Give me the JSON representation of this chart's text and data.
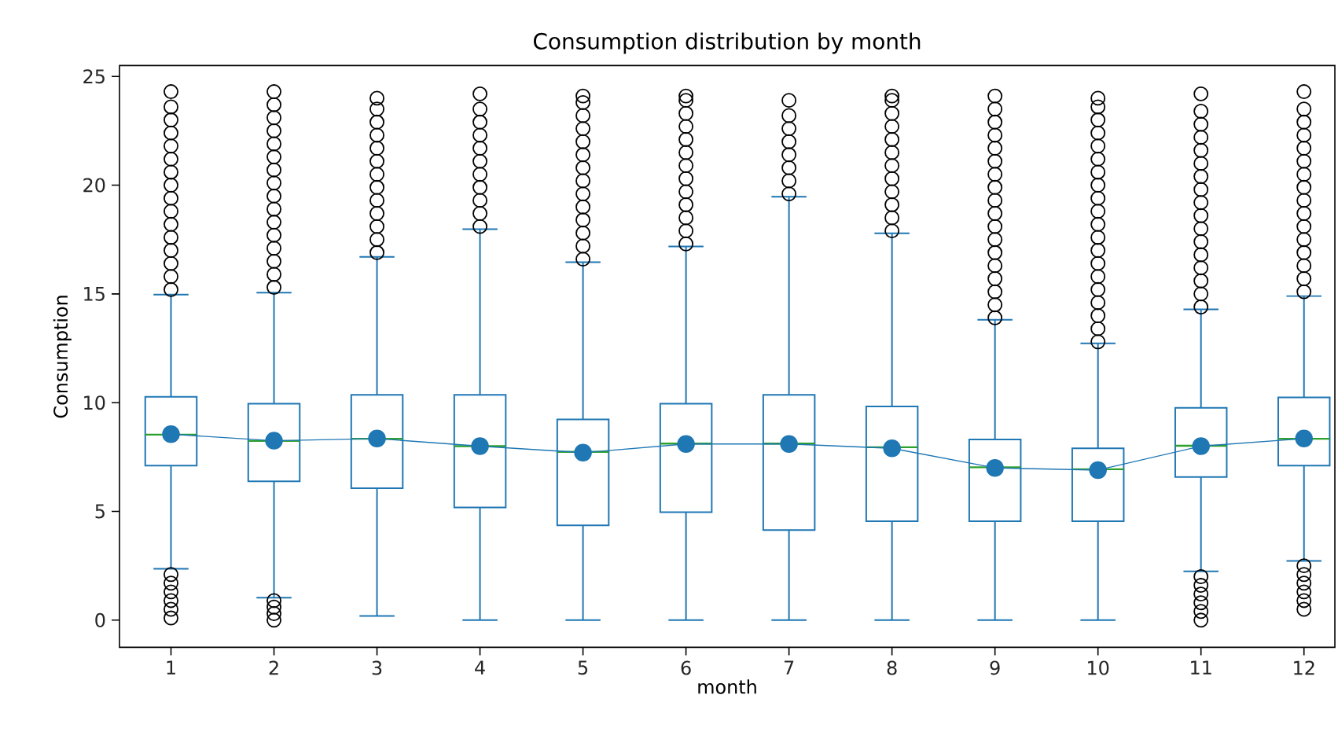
{
  "chart_data": {
    "type": "box",
    "title": "Consumption distribution by month",
    "xlabel": "month",
    "ylabel": "Consumption",
    "categories": [
      "1",
      "2",
      "3",
      "4",
      "5",
      "6",
      "7",
      "8",
      "9",
      "10",
      "11",
      "12"
    ],
    "ylim": [
      -1.25,
      25.5
    ],
    "yticks": [
      0,
      5,
      10,
      15,
      20,
      25
    ],
    "grid": false,
    "series": [
      {
        "color": "#1f77b4",
        "boxes": [
          {
            "low": 2.36,
            "q1": 7.11,
            "median": 8.53,
            "q3": 10.27,
            "high": 14.97,
            "outliers": [
              0.1,
              0.5,
              0.9,
              1.3,
              1.7,
              2.1,
              15.2,
              15.8,
              16.4,
              17.0,
              17.6,
              18.2,
              18.8,
              19.4,
              20.0,
              20.6,
              21.2,
              21.8,
              22.4,
              23.0,
              23.6,
              24.3
            ]
          },
          {
            "low": 1.03,
            "q1": 6.38,
            "median": 8.24,
            "q3": 9.95,
            "high": 15.06,
            "outliers": [
              0.0,
              0.3,
              0.6,
              0.9,
              15.3,
              15.9,
              16.5,
              17.1,
              17.7,
              18.3,
              18.9,
              19.5,
              20.1,
              20.7,
              21.3,
              21.9,
              22.5,
              23.1,
              23.7,
              24.3
            ]
          },
          {
            "low": 0.19,
            "q1": 6.07,
            "median": 8.34,
            "q3": 10.36,
            "high": 16.7,
            "outliers": [
              16.9,
              17.5,
              18.1,
              18.7,
              19.3,
              19.9,
              20.5,
              21.1,
              21.7,
              22.3,
              22.9,
              23.5,
              24.0
            ]
          },
          {
            "low": 0,
            "q1": 5.18,
            "median": 8.0,
            "q3": 10.36,
            "high": 17.98,
            "outliers": [
              18.1,
              18.7,
              19.3,
              19.9,
              20.5,
              21.1,
              21.7,
              22.3,
              22.9,
              23.5,
              24.2
            ]
          },
          {
            "low": 0,
            "q1": 4.36,
            "median": 7.74,
            "q3": 9.23,
            "high": 16.46,
            "outliers": [
              16.6,
              17.2,
              17.8,
              18.4,
              19.0,
              19.6,
              20.2,
              20.8,
              21.4,
              22.0,
              22.6,
              23.2,
              23.8,
              24.1
            ]
          },
          {
            "low": 0,
            "q1": 4.96,
            "median": 8.12,
            "q3": 9.95,
            "high": 17.18,
            "outliers": [
              17.3,
              17.9,
              18.5,
              19.1,
              19.7,
              20.3,
              20.9,
              21.5,
              22.1,
              22.7,
              23.3,
              23.9,
              24.1
            ]
          },
          {
            "low": 0,
            "q1": 4.14,
            "median": 8.12,
            "q3": 10.36,
            "high": 19.47,
            "outliers": [
              19.6,
              20.2,
              20.8,
              21.4,
              22.0,
              22.6,
              23.2,
              23.9
            ]
          },
          {
            "low": 0,
            "q1": 4.55,
            "median": 7.95,
            "q3": 9.83,
            "high": 17.79,
            "outliers": [
              17.9,
              18.5,
              19.1,
              19.7,
              20.3,
              20.9,
              21.5,
              22.1,
              22.7,
              23.3,
              23.9,
              24.1
            ]
          },
          {
            "low": 0,
            "q1": 4.55,
            "median": 7.03,
            "q3": 8.31,
            "high": 13.81,
            "outliers": [
              13.9,
              14.5,
              15.1,
              15.7,
              16.3,
              16.9,
              17.5,
              18.1,
              18.7,
              19.3,
              19.9,
              20.5,
              21.1,
              21.7,
              22.3,
              22.9,
              23.5,
              24.1
            ]
          },
          {
            "low": 0,
            "q1": 4.55,
            "median": 6.94,
            "q3": 7.9,
            "high": 12.73,
            "outliers": [
              12.8,
              13.4,
              14.0,
              14.6,
              15.2,
              15.8,
              16.4,
              17.0,
              17.6,
              18.2,
              18.8,
              19.4,
              20.0,
              20.6,
              21.2,
              21.8,
              22.4,
              23.0,
              23.6,
              24.0
            ]
          },
          {
            "low": 2.24,
            "q1": 6.58,
            "median": 8.02,
            "q3": 9.76,
            "high": 14.29,
            "outliers": [
              0.0,
              0.4,
              0.8,
              1.2,
              1.6,
              2.0,
              14.4,
              15.0,
              15.6,
              16.2,
              16.8,
              17.4,
              18.0,
              18.6,
              19.2,
              19.8,
              20.4,
              21.0,
              21.6,
              22.2,
              22.8,
              23.4,
              24.2
            ]
          },
          {
            "low": 2.72,
            "q1": 7.11,
            "median": 8.34,
            "q3": 10.24,
            "high": 14.9,
            "outliers": [
              0.5,
              0.9,
              1.3,
              1.7,
              2.1,
              2.5,
              15.1,
              15.7,
              16.3,
              16.9,
              17.5,
              18.1,
              18.7,
              19.3,
              19.9,
              20.5,
              21.1,
              21.7,
              22.3,
              22.9,
              23.5,
              24.3
            ]
          }
        ]
      },
      {
        "type": "line",
        "color": "#1f77b4",
        "marker": "circle",
        "values": [
          8.55,
          8.25,
          8.35,
          8.0,
          7.7,
          8.1,
          8.1,
          7.9,
          7.0,
          6.9,
          8.0,
          8.35
        ]
      }
    ]
  }
}
